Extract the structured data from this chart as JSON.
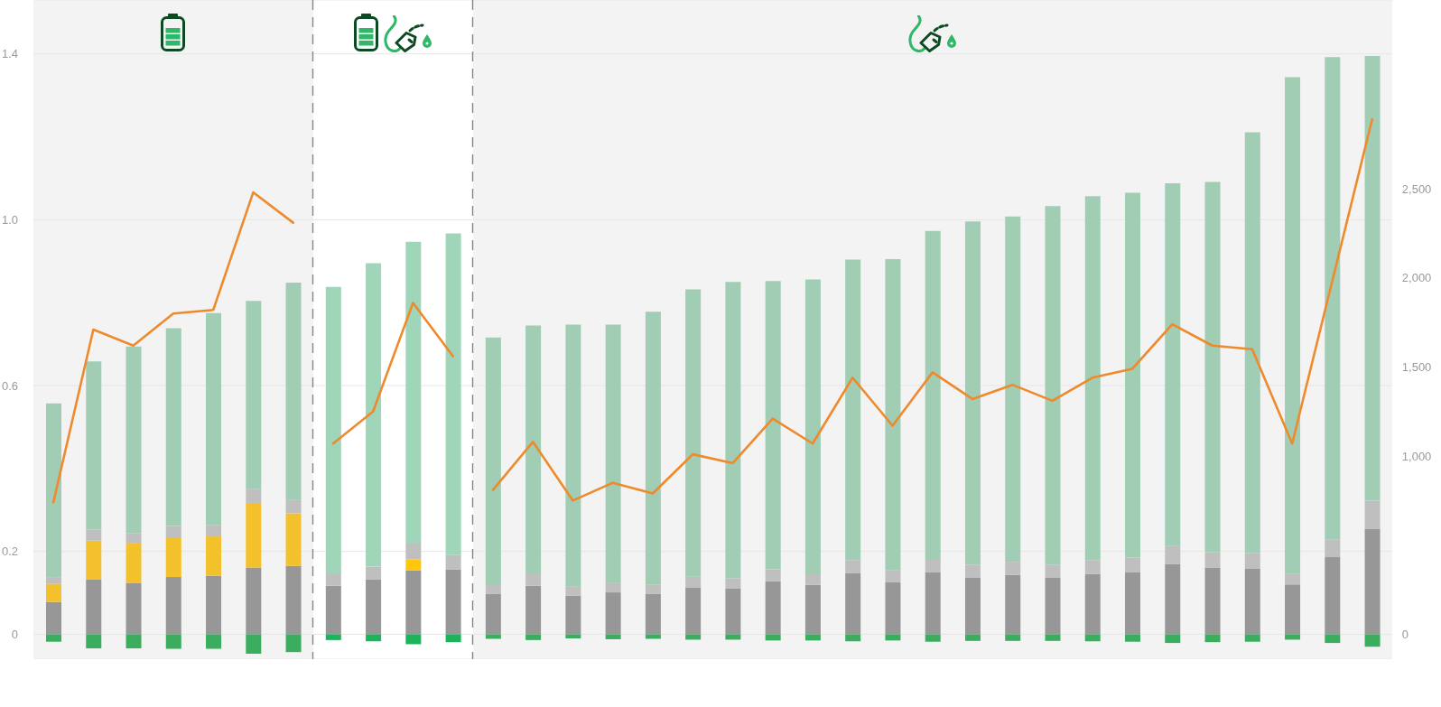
{
  "chart_data": {
    "type": "bar",
    "stacked": true,
    "categories": [
      null,
      null,
      null,
      null,
      null,
      null,
      null,
      null,
      null,
      null,
      null,
      null,
      null,
      null,
      null,
      null,
      null,
      null,
      null,
      null,
      null,
      null,
      null,
      null,
      null,
      null,
      null,
      null,
      null,
      null,
      null,
      null,
      null,
      null
    ],
    "series": [
      {
        "color": "#979797",
        "values": [
          0.078,
          0.132,
          0.123,
          0.138,
          0.141,
          0.161,
          0.165,
          0.117,
          0.132,
          0.154,
          0.156,
          0.097,
          0.117,
          0.093,
          0.101,
          0.097,
          0.113,
          0.111,
          0.128,
          0.119,
          0.147,
          0.125,
          0.149,
          0.136,
          0.143,
          0.136,
          0.145,
          0.149,
          0.169,
          0.161,
          0.159,
          0.12,
          0.186,
          0.255
        ]
      },
      {
        "colors": [
          "#f3c12b",
          "#f3c12b",
          "#f3c12b",
          "#f3c12b",
          "#f3c12b",
          "#f3c12b",
          "#f3c12b",
          "#ffc60a",
          "#ffc60a",
          "#ffc60a",
          "#ffc60a",
          "#f3c12b",
          "#f3c12b",
          "#f3c12b",
          "#f3c12b",
          "#f3c12b",
          "#f3c12b",
          "#f3c12b",
          "#f3c12b",
          "#f3c12b",
          "#f3c12b",
          "#f3c12b",
          "#f3c12b",
          "#f3c12b",
          "#f3c12b",
          "#f3c12b",
          "#f3c12b",
          "#f3c12b",
          "#f3c12b",
          "#f3c12b",
          "#f3c12b",
          "#f3c12b",
          "#f3c12b",
          "#f3c12b"
        ],
        "values": [
          0.044,
          0.094,
          0.096,
          0.096,
          0.095,
          0.156,
          0.127,
          null,
          null,
          0.027,
          null,
          null,
          null,
          null,
          null,
          null,
          null,
          null,
          null,
          null,
          null,
          null,
          null,
          null,
          null,
          null,
          null,
          null,
          null,
          null,
          null,
          null,
          null,
          null
        ]
      },
      {
        "color": "#bfbfbf",
        "values": [
          0.016,
          0.027,
          0.025,
          0.027,
          0.028,
          0.033,
          0.032,
          0.028,
          0.031,
          0.038,
          0.035,
          0.024,
          0.03,
          0.022,
          0.024,
          0.022,
          0.026,
          0.024,
          0.029,
          0.026,
          0.032,
          0.029,
          0.033,
          0.032,
          0.032,
          0.032,
          0.034,
          0.036,
          0.044,
          0.037,
          0.037,
          0.026,
          0.042,
          0.067
        ]
      },
      {
        "colors": [
          "#a0cdb4",
          "#a0cdb4",
          "#a0cdb4",
          "#a0cdb4",
          "#a0cdb4",
          "#a0cdb4",
          "#a0cdb4",
          "#9fd5b8",
          "#9fd5b8",
          "#9fd5b8",
          "#9fd5b8",
          "#a0cdb4",
          "#a0cdb4",
          "#a0cdb4",
          "#a0cdb4",
          "#a0cdb4",
          "#a0cdb4",
          "#a0cdb4",
          "#a0cdb4",
          "#a0cdb4",
          "#a0cdb4",
          "#a0cdb4",
          "#a0cdb4",
          "#a0cdb4",
          "#a0cdb4",
          "#a0cdb4",
          "#a0cdb4",
          "#a0cdb4",
          "#a0cdb4",
          "#a0cdb4",
          "#a0cdb4",
          "#a0cdb4",
          "#a0cdb4",
          "#a0cdb4"
        ],
        "values": [
          0.419,
          0.405,
          0.45,
          0.477,
          0.511,
          0.454,
          0.524,
          0.693,
          0.732,
          0.728,
          0.776,
          0.595,
          0.598,
          0.632,
          0.622,
          0.659,
          0.693,
          0.715,
          0.695,
          0.711,
          0.725,
          0.751,
          0.791,
          0.828,
          0.833,
          0.865,
          0.878,
          0.88,
          0.875,
          0.893,
          1.015,
          1.198,
          1.164,
          1.073
        ]
      },
      {
        "colors": [
          "#3aad5e",
          "#3aad5e",
          "#3aad5e",
          "#3aad5e",
          "#3aad5e",
          "#3aad5e",
          "#3aad5e",
          "#1db35a",
          "#1db35a",
          "#1db35a",
          "#1db35a",
          "#3aad5e",
          "#3aad5e",
          "#3aad5e",
          "#3aad5e",
          "#3aad5e",
          "#3aad5e",
          "#3aad5e",
          "#3aad5e",
          "#3aad5e",
          "#3aad5e",
          "#3aad5e",
          "#3aad5e",
          "#3aad5e",
          "#3aad5e",
          "#3aad5e",
          "#3aad5e",
          "#3aad5e",
          "#3aad5e",
          "#3aad5e",
          "#3aad5e",
          "#3aad5e",
          "#3aad5e",
          "#3aad5e"
        ],
        "values": [
          -0.018,
          -0.034,
          -0.034,
          -0.035,
          -0.035,
          -0.047,
          -0.043,
          -0.014,
          -0.017,
          -0.024,
          -0.019,
          -0.011,
          -0.014,
          -0.01,
          -0.012,
          -0.011,
          -0.013,
          -0.013,
          -0.015,
          -0.015,
          -0.017,
          -0.015,
          -0.018,
          -0.016,
          -0.016,
          -0.016,
          -0.017,
          -0.018,
          -0.021,
          -0.019,
          -0.018,
          -0.013,
          -0.021,
          -0.03
        ]
      },
      {
        "type": "line",
        "axis": "y2",
        "color": "#ee8a2b",
        "values": [
          740,
          1710,
          1620,
          1800,
          1820,
          2480,
          2310,
          null,
          null,
          null,
          null,
          null,
          null,
          null,
          null,
          null,
          null,
          null,
          null,
          null,
          null,
          null,
          null,
          null,
          null,
          null,
          null,
          null,
          null,
          null,
          null,
          null,
          null,
          null
        ]
      },
      {
        "type": "line",
        "axis": "y2",
        "color": "#ee8a2b",
        "values": [
          null,
          null,
          null,
          null,
          null,
          null,
          null,
          1070,
          1250,
          1860,
          1560,
          null,
          null,
          null,
          null,
          null,
          null,
          null,
          null,
          null,
          null,
          null,
          null,
          null,
          null,
          null,
          null,
          null,
          null,
          null,
          null,
          null,
          null,
          null
        ]
      },
      {
        "type": "line",
        "axis": "y2",
        "color": "#ee8a2b",
        "values": [
          null,
          null,
          null,
          null,
          null,
          null,
          null,
          null,
          null,
          null,
          null,
          810,
          1080,
          750,
          850,
          790,
          1010,
          960,
          1210,
          1070,
          1440,
          1170,
          1470,
          1320,
          1400,
          1310,
          1440,
          1490,
          1740,
          1620,
          1600,
          1070,
          1980,
          2890
        ]
      }
    ],
    "ylim": [
      -0.06,
      1.53
    ],
    "yticks": [
      0,
      0.2,
      0.6,
      {
        "value": 1,
        "label": "1.0"
      },
      1.4
    ],
    "y2lim": [
      -140,
      3560
    ],
    "y2ticks": [
      0,
      {
        "value": 1000,
        "label": "1,000"
      },
      {
        "value": 1500,
        "label": "1,500"
      },
      {
        "value": 2000,
        "label": "2,000"
      },
      {
        "value": 2500,
        "label": "2,500"
      }
    ],
    "grid": "y"
  }
}
